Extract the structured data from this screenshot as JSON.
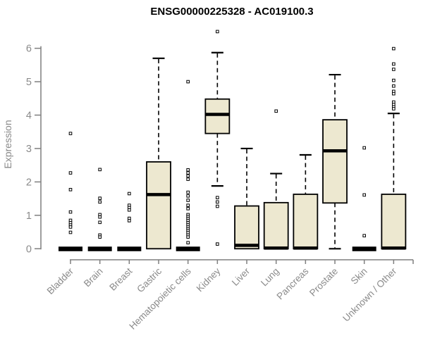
{
  "header": {
    "title": "ENSG00000225328 - AC019100.3"
  },
  "chart_data": {
    "type": "boxplot",
    "title": "ENSG00000225328 - AC019100.3",
    "xlabel": "",
    "ylabel": "Expression",
    "ylim": [
      0,
      6
    ],
    "yticks": [
      0,
      1,
      2,
      3,
      4,
      5,
      6
    ],
    "grid": false,
    "legend": "none",
    "categories": [
      "Bladder",
      "Brain",
      "Breast",
      "Gastric",
      "Hematopoietic cells",
      "Kidney",
      "Liver",
      "Lung",
      "Pancreas",
      "Prostate",
      "Skin",
      "Unknown / Other"
    ],
    "boxes": [
      {
        "category": "Bladder",
        "q1": 0,
        "median": 0,
        "q3": 0,
        "whisker_low": 0,
        "whisker_high": 0,
        "outliers": [
          3.45,
          2.27,
          1.77,
          1.1,
          0.85,
          0.78,
          0.71,
          0.65,
          0.49
        ]
      },
      {
        "category": "Brain",
        "q1": 0,
        "median": 0,
        "q3": 0,
        "whisker_low": 0,
        "whisker_high": 0,
        "outliers": [
          2.37,
          1.51,
          1.4,
          1.02,
          0.95,
          0.79,
          0.41,
          0.35
        ]
      },
      {
        "category": "Breast",
        "q1": 0,
        "median": 0,
        "q3": 0,
        "whisker_low": 0,
        "whisker_high": 0,
        "outliers": [
          1.65,
          1.3,
          1.23,
          1.16,
          0.91,
          0.84
        ]
      },
      {
        "category": "Gastric",
        "q1": 0,
        "median": 1.62,
        "q3": 2.6,
        "whisker_low": 0,
        "whisker_high": 5.7,
        "outliers": []
      },
      {
        "category": "Hematopoietic cells",
        "q1": 0,
        "median": 0,
        "q3": 0,
        "whisker_low": 0,
        "whisker_high": 0,
        "outliers": [
          5.0,
          2.36,
          2.27,
          2.18,
          2.08,
          1.69,
          1.58,
          1.45,
          1.3,
          1.2,
          1.02,
          0.96,
          0.9,
          0.84,
          0.78,
          0.72,
          0.66,
          0.6,
          0.54,
          0.48,
          0.41,
          0.35,
          0.18
        ]
      },
      {
        "category": "Kidney",
        "q1": 3.45,
        "median": 4.02,
        "q3": 4.48,
        "whisker_low": 1.88,
        "whisker_high": 5.87,
        "outliers": [
          6.5,
          1.53,
          1.4,
          1.27,
          0.14
        ]
      },
      {
        "category": "Liver",
        "q1": 0,
        "median": 0.1,
        "q3": 1.28,
        "whisker_low": 0,
        "whisker_high": 3.0,
        "outliers": []
      },
      {
        "category": "Lung",
        "q1": 0,
        "median": 0.02,
        "q3": 1.38,
        "whisker_low": 0,
        "whisker_high": 2.25,
        "outliers": [
          4.12
        ]
      },
      {
        "category": "Pancreas",
        "q1": 0,
        "median": 0.02,
        "q3": 1.63,
        "whisker_low": 0,
        "whisker_high": 2.81,
        "outliers": []
      },
      {
        "category": "Prostate",
        "q1": 1.37,
        "median": 2.93,
        "q3": 3.86,
        "whisker_low": 0,
        "whisker_high": 5.21,
        "outliers": []
      },
      {
        "category": "Skin",
        "q1": 0,
        "median": 0,
        "q3": 0,
        "whisker_low": 0,
        "whisker_high": 0,
        "outliers": [
          3.02,
          1.61,
          0.39
        ]
      },
      {
        "category": "Unknown / Other",
        "q1": 0,
        "median": 0.02,
        "q3": 1.63,
        "whisker_low": 0,
        "whisker_high": 4.05,
        "outliers": [
          5.99,
          5.53,
          5.37,
          5.04,
          4.87,
          4.71,
          4.64,
          4.39,
          4.32,
          4.25,
          4.19
        ]
      }
    ],
    "colors": {
      "box_fill": "#EDE8D0",
      "box_border": "#000000",
      "median": "#000000",
      "whisker": "#000000",
      "outlier_fill": "#ffffff",
      "outlier_border": "#000000",
      "axis": "#7f7f7f",
      "tick_label": "#8a8a8a",
      "title": "#000000",
      "background": "#ffffff"
    }
  }
}
